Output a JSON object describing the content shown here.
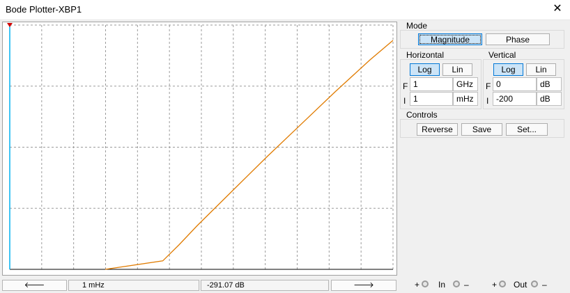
{
  "window": {
    "title": "Bode Plotter-XBP1",
    "close_icon": "close-icon"
  },
  "mode": {
    "label": "Mode",
    "magnitude_label": "Magnitude",
    "phase_label": "Phase",
    "selected": "Magnitude"
  },
  "horizontal": {
    "label": "Horizontal",
    "log_label": "Log",
    "lin_label": "Lin",
    "selected": "Log",
    "final_prefix": "F",
    "final_value": "1",
    "final_unit": "GHz",
    "initial_prefix": "I",
    "initial_value": "1",
    "initial_unit": "mHz"
  },
  "vertical": {
    "label": "Vertical",
    "log_label": "Log",
    "lin_label": "Lin",
    "selected": "Log",
    "final_prefix": "F",
    "final_value": "0",
    "final_unit": "dB",
    "initial_prefix": "I",
    "initial_value": "-200",
    "initial_unit": "dB"
  },
  "controls": {
    "label": "Controls",
    "reverse_label": "Reverse",
    "save_label": "Save",
    "set_label": "Set..."
  },
  "readout": {
    "left_arrow": "🡐",
    "right_arrow": "🡒",
    "frequency": "1 mHz",
    "value": "-291.07 dB"
  },
  "terminals": {
    "plus": "+",
    "minus": "–",
    "in_label": "In",
    "out_label": "Out"
  },
  "colors": {
    "trace": "#e07b00",
    "cursor": "#00b0f0",
    "grid": "#9a9a9a",
    "active_button": "#cce4f7"
  },
  "chart_data": {
    "type": "line",
    "x_scale": "log",
    "y_scale": "dB",
    "xlim": [
      "1 mHz",
      "1 GHz"
    ],
    "ylim": [
      -200,
      0
    ],
    "grid": true,
    "cursor_x": "1 mHz",
    "series": [
      {
        "points": [
          [
            0.0,
            1.0
          ],
          [
            0.25,
            0.965
          ],
          [
            0.32,
            0.9
          ],
          [
            0.4,
            0.82
          ],
          [
            0.55,
            0.68
          ],
          [
            0.7,
            0.54
          ],
          [
            0.85,
            0.405
          ],
          [
            1.0,
            0.27
          ],
          [
            1.15,
            0.14
          ],
          [
            1.25,
            0.06
          ]
        ]
      }
    ]
  }
}
